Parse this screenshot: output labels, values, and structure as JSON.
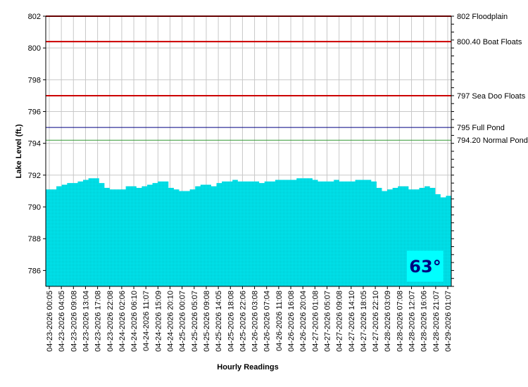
{
  "chart_data": {
    "type": "area",
    "xlabel": "Hourly Readings",
    "ylabel": "Lake Level (ft.)",
    "ylim": [
      785,
      802
    ],
    "yticks": [
      786,
      788,
      790,
      792,
      794,
      796,
      798,
      800,
      802
    ],
    "grid": true,
    "series": [
      {
        "color": "#00e5ee",
        "values": [
          791.1,
          791.1,
          791.3,
          791.4,
          791.5,
          791.5,
          791.6,
          791.7,
          791.8,
          791.8,
          791.5,
          791.2,
          791.1,
          791.1,
          791.1,
          791.3,
          791.3,
          791.2,
          791.3,
          791.4,
          791.5,
          791.6,
          791.6,
          791.2,
          791.1,
          791.0,
          791.0,
          791.1,
          791.3,
          791.4,
          791.4,
          791.3,
          791.5,
          791.6,
          791.6,
          791.7,
          791.6,
          791.6,
          791.6,
          791.6,
          791.5,
          791.6,
          791.6,
          791.7,
          791.7,
          791.7,
          791.7,
          791.8,
          791.8,
          791.8,
          791.7,
          791.6,
          791.6,
          791.6,
          791.7,
          791.6,
          791.6,
          791.6,
          791.7,
          791.7,
          791.7,
          791.6,
          791.2,
          791.0,
          791.1,
          791.2,
          791.3,
          791.3,
          791.1,
          791.1,
          791.2,
          791.3,
          791.2,
          790.8,
          790.6,
          790.7
        ]
      }
    ],
    "x_labels": [
      "04-23-2026 00:05",
      "04-23-2026 04:05",
      "04-23-2026 09:08",
      "04-23-2026 13:04",
      "04-23-2026 17:08",
      "04-23-2026 22:08",
      "04-24-2026 02:06",
      "04-24-2026 06:10",
      "04-24-2026 11:07",
      "04-24-2026 15:09",
      "04-24-2026 20:10",
      "04-25-2026 00:07",
      "04-25-2026 05:07",
      "04-25-2026 09:08",
      "04-25-2026 14:05",
      "04-25-2026 18:08",
      "04-25-2026 22:06",
      "04-26-2026 03:08",
      "04-26-2026 07:04",
      "04-26-2026 11:08",
      "04-26-2026 16:08",
      "04-26-2026 20:04",
      "04-27-2026 01:08",
      "04-27-2026 05:07",
      "04-27-2026 09:08",
      "04-27-2026 14:10",
      "04-27-2026 18:05",
      "04-27-2026 22:10",
      "04-28-2026 03:09",
      "04-28-2026 07:08",
      "04-28-2026 12:07",
      "04-28-2026 16:06",
      "04-28-2026 21:07",
      "04-29-2026 01:07"
    ],
    "reference_lines": [
      {
        "value": 802,
        "label": "802 Floodplain",
        "color": "#cc0000"
      },
      {
        "value": 800.4,
        "label": "800.40 Boat Floats",
        "color": "#cc0000"
      },
      {
        "value": 797,
        "label": "797 Sea Doo Floats",
        "color": "#cc0000"
      },
      {
        "value": 795,
        "label": "795 Full Pond",
        "color": "#000080"
      },
      {
        "value": 794.2,
        "label": "794.20 Normal Pond",
        "color": "#339933"
      }
    ],
    "temperature": {
      "text": "63°",
      "text_color": "#000080",
      "background": "#00ffff"
    }
  }
}
